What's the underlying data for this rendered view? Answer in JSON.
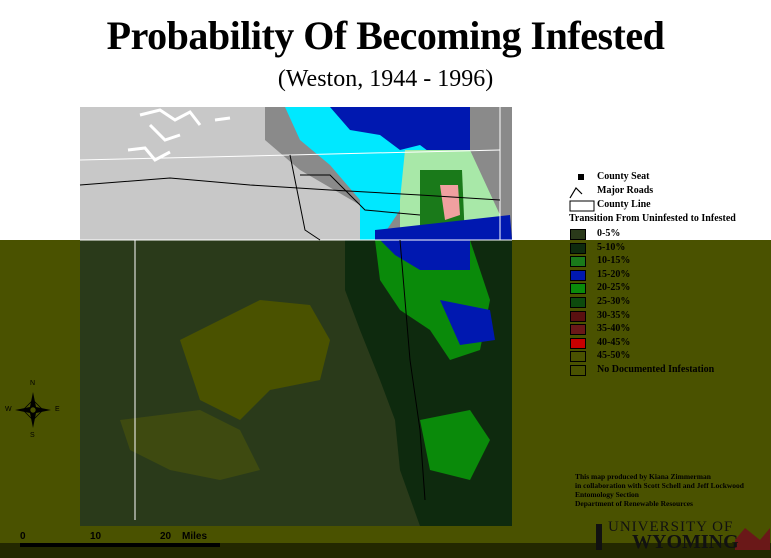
{
  "title": "Probability Of Becoming Infested",
  "subtitle": "(Weston, 1944 - 1996)",
  "legend": {
    "county_seat": "County Seat",
    "major_roads": "Major Roads",
    "county_line": "County Line",
    "heading": "Transition From Uninfested to Infested",
    "classes": [
      {
        "label": "0-5%",
        "color": "#2a3a1a"
      },
      {
        "label": "5-10%",
        "color": "#0e2a0e"
      },
      {
        "label": "10-15%",
        "color": "#1a7a1a"
      },
      {
        "label": "15-20%",
        "color": "#0018b0"
      },
      {
        "label": "20-25%",
        "color": "#0a8a0a"
      },
      {
        "label": "25-30%",
        "color": "#0d4a0d"
      },
      {
        "label": "30-35%",
        "color": "#5a1010"
      },
      {
        "label": "35-40%",
        "color": "#6a1818"
      },
      {
        "label": "40-45%",
        "color": "#c80000"
      },
      {
        "label": "45-50%",
        "color": "#4a5200"
      },
      {
        "label": "No Documented Infestation",
        "color": "#4a5200"
      }
    ]
  },
  "credits": [
    "This map produced by Kiana Zimmerman",
    "in collaboration with Scott Schell and Jeff Lockwood",
    "Entomology Section",
    "Department of Renewable Resources"
  ],
  "scale": {
    "zero": "0",
    "ten": "10",
    "twenty": "20",
    "unit": "Miles"
  },
  "compass": {
    "n": "N",
    "s": "S",
    "e": "E",
    "w": "W"
  },
  "logo": {
    "line1": "UNIVERSITY OF",
    "line2": "WYOMING"
  },
  "colors": {
    "background_upper": "#ffffff",
    "background_lower": "#4a5200",
    "uninfested_gray": "#c8c8c8",
    "dark_gray": "#8a8a8a",
    "cyan": "#00e8ff",
    "blue": "#0018b0",
    "pink": "#f0a0a0",
    "light_green": "#a8e8a8"
  }
}
